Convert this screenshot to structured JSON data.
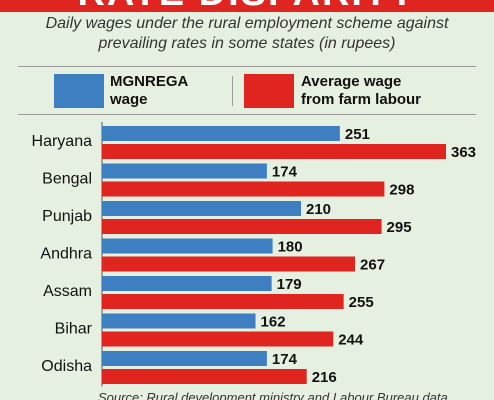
{
  "title": "RATE DISPARITY",
  "subtitle": "Daily wages under the rural employment scheme against prevailing rates in some states (in rupees)",
  "legend": {
    "mgnrega": "MGNREGA\nwage",
    "farm": "Average wage\nfrom farm labour"
  },
  "source": "Source: Rural development ministry and Labour Bureau data",
  "colors": {
    "mgnrega": "#3d7fc1",
    "farm": "#e0241f",
    "background": "#e6f0e1",
    "title_band": "#e0241f"
  },
  "chart_data": {
    "type": "bar",
    "orientation": "horizontal",
    "categories": [
      "Haryana",
      "Bengal",
      "Punjab",
      "Andhra",
      "Assam",
      "Bihar",
      "Odisha"
    ],
    "series": [
      {
        "name": "MGNREGA wage",
        "values": [
          251,
          174,
          210,
          180,
          179,
          162,
          174
        ]
      },
      {
        "name": "Average wage from farm labour",
        "values": [
          363,
          298,
          295,
          267,
          255,
          244,
          216
        ]
      }
    ],
    "xlim": [
      0,
      363
    ],
    "data_labels": true,
    "grid": false
  }
}
